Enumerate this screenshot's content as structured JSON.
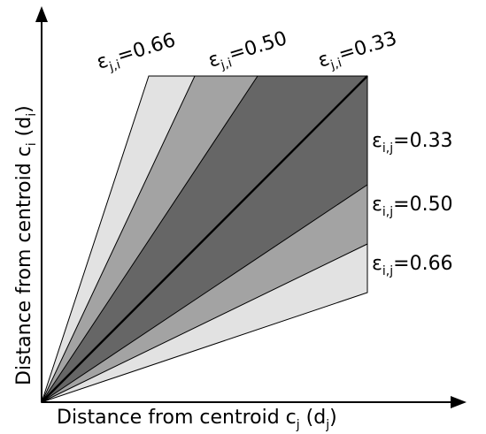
{
  "axes": {
    "x_label": "Distance from centroid c",
    "x_label_sub": "j",
    "x_label_paren": " (d",
    "x_label_paren_sub": "j",
    "x_label_close": ")",
    "y_label": "Distance from centroid c",
    "y_label_sub": "i",
    "y_label_paren": " (d",
    "y_label_paren_sub": "i",
    "y_label_close": ")"
  },
  "regions": {
    "symbol": "ε",
    "top_labels": [
      {
        "sub": "j,i",
        "value": "=0.66"
      },
      {
        "sub": "j,i",
        "value": "=0.50"
      },
      {
        "sub": "j,i",
        "value": "=0.33"
      }
    ],
    "right_labels": [
      {
        "sub": "i,j",
        "value": "=0.33"
      },
      {
        "sub": "i,j",
        "value": "=0.50"
      },
      {
        "sub": "i,j",
        "value": "=0.66"
      }
    ]
  },
  "colors": {
    "light": "#e2e2e2",
    "medium": "#a3a3a3",
    "dark": "#666666",
    "stroke": "#000000"
  }
}
